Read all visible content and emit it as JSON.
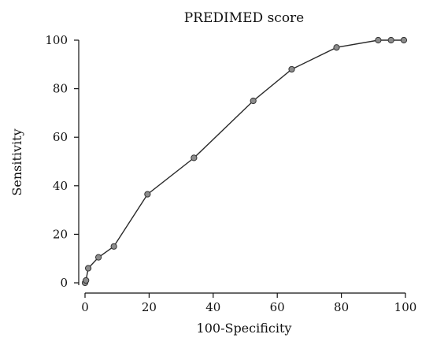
{
  "chart_data": {
    "type": "line",
    "title": "PREDIMED score",
    "xlabel": "100-Specificity",
    "ylabel": "Sensitivity",
    "xlim": [
      0,
      100
    ],
    "ylim": [
      0,
      100
    ],
    "xticks": [
      "0",
      "20",
      "40",
      "60",
      "80",
      "100"
    ],
    "yticks": [
      "0",
      "20",
      "40",
      "60",
      "80",
      "100"
    ],
    "grid": false,
    "legend": "none",
    "series": [
      {
        "x": [
          0,
          0.3,
          1,
          4.2,
          9,
          19.5,
          34,
          52.5,
          64.5,
          78.5,
          91.5,
          95.5,
          99.5
        ],
        "y": [
          0,
          1,
          6,
          10.5,
          15,
          36.5,
          51.5,
          75,
          88,
          97,
          100,
          100,
          100
        ],
        "line_color": "#2a2a2a",
        "marker_fill": "#8c8c8c"
      }
    ]
  }
}
